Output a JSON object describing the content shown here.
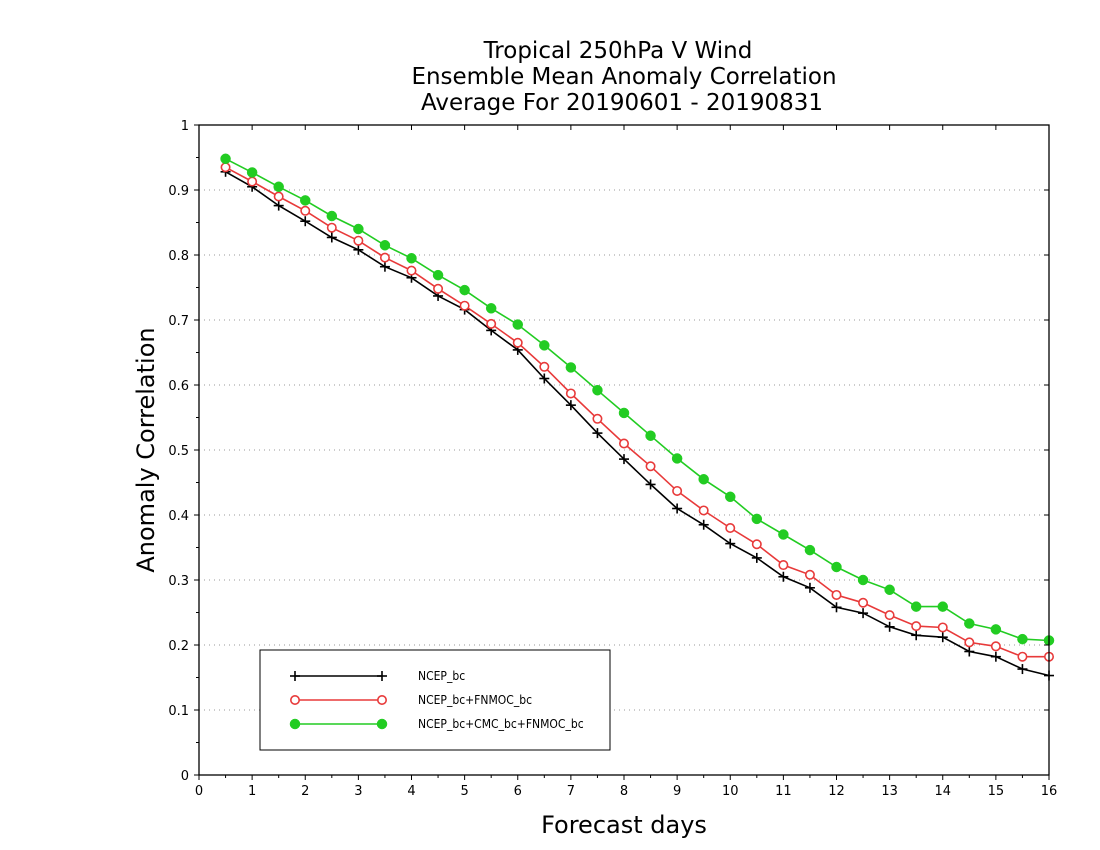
{
  "chart_data": {
    "type": "line",
    "title": [
      "Tropical 250hPa V Wind",
      "Ensemble Mean Anomaly Correlation",
      "Average For 20190601 - 20190831"
    ],
    "xlabel": "Forecast days",
    "ylabel": "Anomaly Correlation",
    "xlim": [
      0,
      16
    ],
    "ylim": [
      0,
      1
    ],
    "xticks": [
      "0",
      "1",
      "2",
      "3",
      "4",
      "5",
      "6",
      "7",
      "8",
      "9",
      "10",
      "11",
      "12",
      "13",
      "14",
      "15",
      "16"
    ],
    "yticks": [
      "0",
      "0.1",
      "0.2",
      "0.3",
      "0.4",
      "0.5",
      "0.6",
      "0.7",
      "0.8",
      "0.9",
      "1"
    ],
    "grid": true,
    "legend_position": "bottom-left",
    "x": [
      0.5,
      1,
      1.5,
      2,
      2.5,
      3,
      3.5,
      4,
      4.5,
      5,
      5.5,
      6,
      6.5,
      7,
      7.5,
      8,
      8.5,
      9,
      9.5,
      10,
      10.5,
      11,
      11.5,
      12,
      12.5,
      13,
      13.5,
      14,
      14.5,
      15,
      15.5,
      16
    ],
    "series": [
      {
        "name": "NCEP_bc",
        "color": "#000000",
        "marker": "plus",
        "values": [
          0.928,
          0.905,
          0.876,
          0.852,
          0.827,
          0.808,
          0.782,
          0.765,
          0.737,
          0.716,
          0.684,
          0.654,
          0.61,
          0.569,
          0.526,
          0.486,
          0.447,
          0.41,
          0.385,
          0.356,
          0.334,
          0.305,
          0.288,
          0.258,
          0.249,
          0.228,
          0.215,
          0.212,
          0.19,
          0.182,
          0.163,
          0.153
        ]
      },
      {
        "name": "NCEP_bc+FNMOC_bc",
        "color": "#e83a3a",
        "marker": "open-circle",
        "values": [
          0.935,
          0.913,
          0.89,
          0.868,
          0.842,
          0.822,
          0.796,
          0.776,
          0.748,
          0.722,
          0.694,
          0.665,
          0.628,
          0.587,
          0.548,
          0.51,
          0.475,
          0.437,
          0.407,
          0.38,
          0.355,
          0.323,
          0.308,
          0.277,
          0.265,
          0.246,
          0.229,
          0.227,
          0.204,
          0.198,
          0.182,
          0.182
        ]
      },
      {
        "name": "NCEP_bc+CMC_bc+FNMOC_bc",
        "color": "#22cc22",
        "marker": "filled-circle",
        "values": [
          0.948,
          0.927,
          0.905,
          0.884,
          0.86,
          0.84,
          0.815,
          0.795,
          0.769,
          0.746,
          0.718,
          0.693,
          0.661,
          0.627,
          0.592,
          0.557,
          0.522,
          0.487,
          0.455,
          0.428,
          0.394,
          0.37,
          0.346,
          0.32,
          0.3,
          0.285,
          0.259,
          0.259,
          0.233,
          0.224,
          0.209,
          0.207
        ]
      }
    ]
  }
}
